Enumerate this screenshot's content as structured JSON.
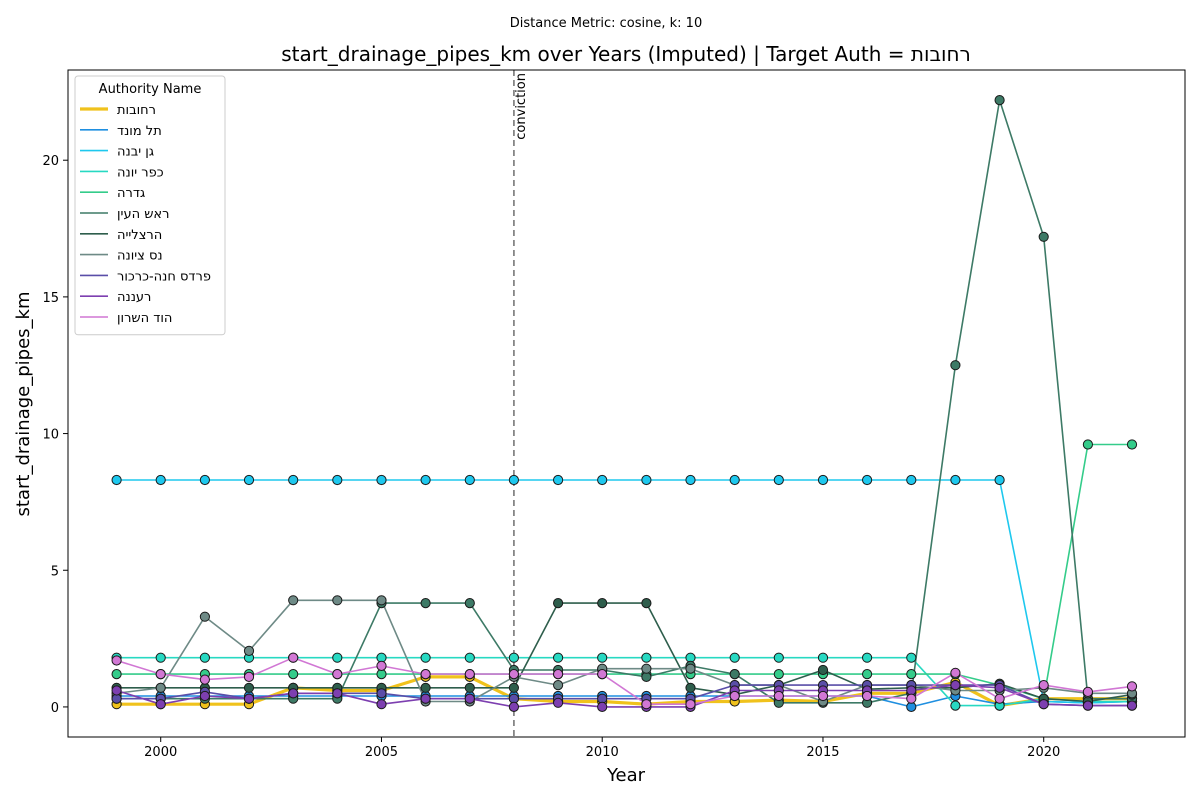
{
  "chart_data": {
    "type": "line",
    "suptitle": "Distance Metric: cosine, k: 10",
    "title": "start_drainage_pipes_km over Years (Imputed) | Target Auth = רחובות",
    "xlabel": "Year",
    "ylabel": "start_drainage_pipes_km",
    "xlim": [
      1997.9,
      2023.2
    ],
    "ylim": [
      -1.1,
      23.3
    ],
    "xticks": [
      2000,
      2005,
      2010,
      2015,
      2020
    ],
    "yticks": [
      0,
      5,
      10,
      15,
      20
    ],
    "grid": false,
    "legend": {
      "title": "Authority Name",
      "position": "top-left"
    },
    "annotation": {
      "x": 2008,
      "text": "conviction",
      "style": "dashed",
      "color": "#777777"
    },
    "x": [
      1999,
      2000,
      2001,
      2002,
      2003,
      2004,
      2005,
      2006,
      2007,
      2008,
      2009,
      2010,
      2011,
      2012,
      2013,
      2014,
      2015,
      2016,
      2017,
      2018,
      2019,
      2020,
      2021,
      2022
    ],
    "series": [
      {
        "name": "רחובות",
        "color": "#f0c21c",
        "width": 3.2,
        "values": [
          0.1,
          0.1,
          0.1,
          0.1,
          0.7,
          0.6,
          0.6,
          1.1,
          1.1,
          0.3,
          0.2,
          0.2,
          0.1,
          0.2,
          0.2,
          0.25,
          0.2,
          0.5,
          0.5,
          0.9,
          0.05,
          0.3,
          0.3,
          0.3
        ]
      },
      {
        "name": "תל מונד",
        "color": "#1f8fe0",
        "width": 1.6,
        "values": [
          0.4,
          0.4,
          0.4,
          0.4,
          0.4,
          0.4,
          0.4,
          0.4,
          0.4,
          0.4,
          0.4,
          0.4,
          0.4,
          0.4,
          0.4,
          0.4,
          0.4,
          0.4,
          0.0,
          0.4,
          0.1,
          0.2,
          0.15,
          0.2
        ]
      },
      {
        "name": "גן יבנה",
        "color": "#1ec8ee",
        "width": 1.6,
        "values": [
          8.3,
          8.3,
          8.3,
          8.3,
          8.3,
          8.3,
          8.3,
          8.3,
          8.3,
          8.3,
          8.3,
          8.3,
          8.3,
          8.3,
          8.3,
          8.3,
          8.3,
          8.3,
          8.3,
          8.3,
          8.3,
          0.2,
          0.15,
          0.2
        ]
      },
      {
        "name": "כפר יונה",
        "color": "#27d9c2",
        "width": 1.6,
        "values": [
          1.8,
          1.8,
          1.8,
          1.8,
          1.8,
          1.8,
          1.8,
          1.8,
          1.8,
          1.8,
          1.8,
          1.8,
          1.8,
          1.8,
          1.8,
          1.8,
          1.8,
          1.8,
          1.8,
          0.05,
          0.05,
          0.3,
          0.2,
          0.2
        ]
      },
      {
        "name": "גדרה",
        "color": "#34cc8a",
        "width": 1.6,
        "values": [
          1.2,
          1.2,
          1.2,
          1.2,
          1.2,
          1.2,
          1.2,
          1.2,
          1.2,
          1.2,
          1.2,
          1.2,
          1.2,
          1.2,
          1.2,
          1.2,
          1.2,
          1.2,
          1.2,
          1.2,
          0.8,
          0.3,
          9.6,
          9.6
        ]
      },
      {
        "name": "ראש העין",
        "color": "#3d7a66",
        "width": 1.6,
        "values": [
          0.3,
          0.3,
          0.3,
          0.3,
          0.3,
          0.3,
          3.8,
          3.8,
          3.8,
          1.35,
          1.35,
          1.35,
          1.1,
          1.5,
          1.2,
          0.15,
          0.15,
          0.15,
          0.5,
          12.5,
          22.2,
          17.2,
          0.3,
          0.3
        ]
      },
      {
        "name": "הרצלייה",
        "color": "#2e5e4c",
        "width": 1.6,
        "values": [
          0.7,
          0.7,
          0.7,
          0.7,
          0.7,
          0.7,
          0.7,
          0.7,
          0.7,
          0.7,
          3.8,
          3.8,
          3.8,
          0.7,
          0.45,
          0.8,
          1.35,
          0.65,
          0.7,
          0.7,
          0.85,
          0.3,
          0.2,
          0.45
        ]
      },
      {
        "name": "נס ציונה",
        "color": "#6e8a86",
        "width": 1.6,
        "values": [
          0.5,
          0.7,
          3.3,
          2.05,
          3.9,
          3.9,
          3.9,
          0.2,
          0.2,
          1.1,
          0.8,
          1.4,
          1.4,
          1.4,
          0.8,
          0.8,
          0.2,
          0.8,
          0.8,
          0.6,
          0.6,
          0.7,
          0.5,
          0.5
        ]
      },
      {
        "name": "פרדס חנה-כרכור",
        "color": "#5a4ea8",
        "width": 1.6,
        "values": [
          0.3,
          0.3,
          0.55,
          0.3,
          0.5,
          0.5,
          0.5,
          0.3,
          0.3,
          0.3,
          0.3,
          0.3,
          0.3,
          0.3,
          0.8,
          0.8,
          0.8,
          0.8,
          0.8,
          0.8,
          0.8,
          0.1,
          0.05,
          0.05
        ]
      },
      {
        "name": "רעננה",
        "color": "#7d3fb0",
        "width": 1.6,
        "values": [
          0.6,
          0.1,
          0.4,
          0.3,
          0.5,
          0.5,
          0.1,
          0.3,
          0.3,
          0.0,
          0.15,
          0.0,
          0.0,
          0.0,
          0.6,
          0.6,
          0.6,
          0.6,
          0.6,
          0.8,
          0.7,
          0.1,
          0.05,
          0.05
        ]
      },
      {
        "name": "הוד השרון",
        "color": "#d177d4",
        "width": 1.6,
        "values": [
          1.7,
          1.2,
          1.0,
          1.1,
          1.8,
          1.2,
          1.5,
          1.2,
          1.2,
          1.2,
          1.2,
          1.2,
          0.1,
          0.1,
          0.4,
          0.4,
          0.4,
          0.4,
          0.3,
          1.25,
          0.3,
          0.8,
          0.55,
          0.75
        ]
      }
    ]
  }
}
